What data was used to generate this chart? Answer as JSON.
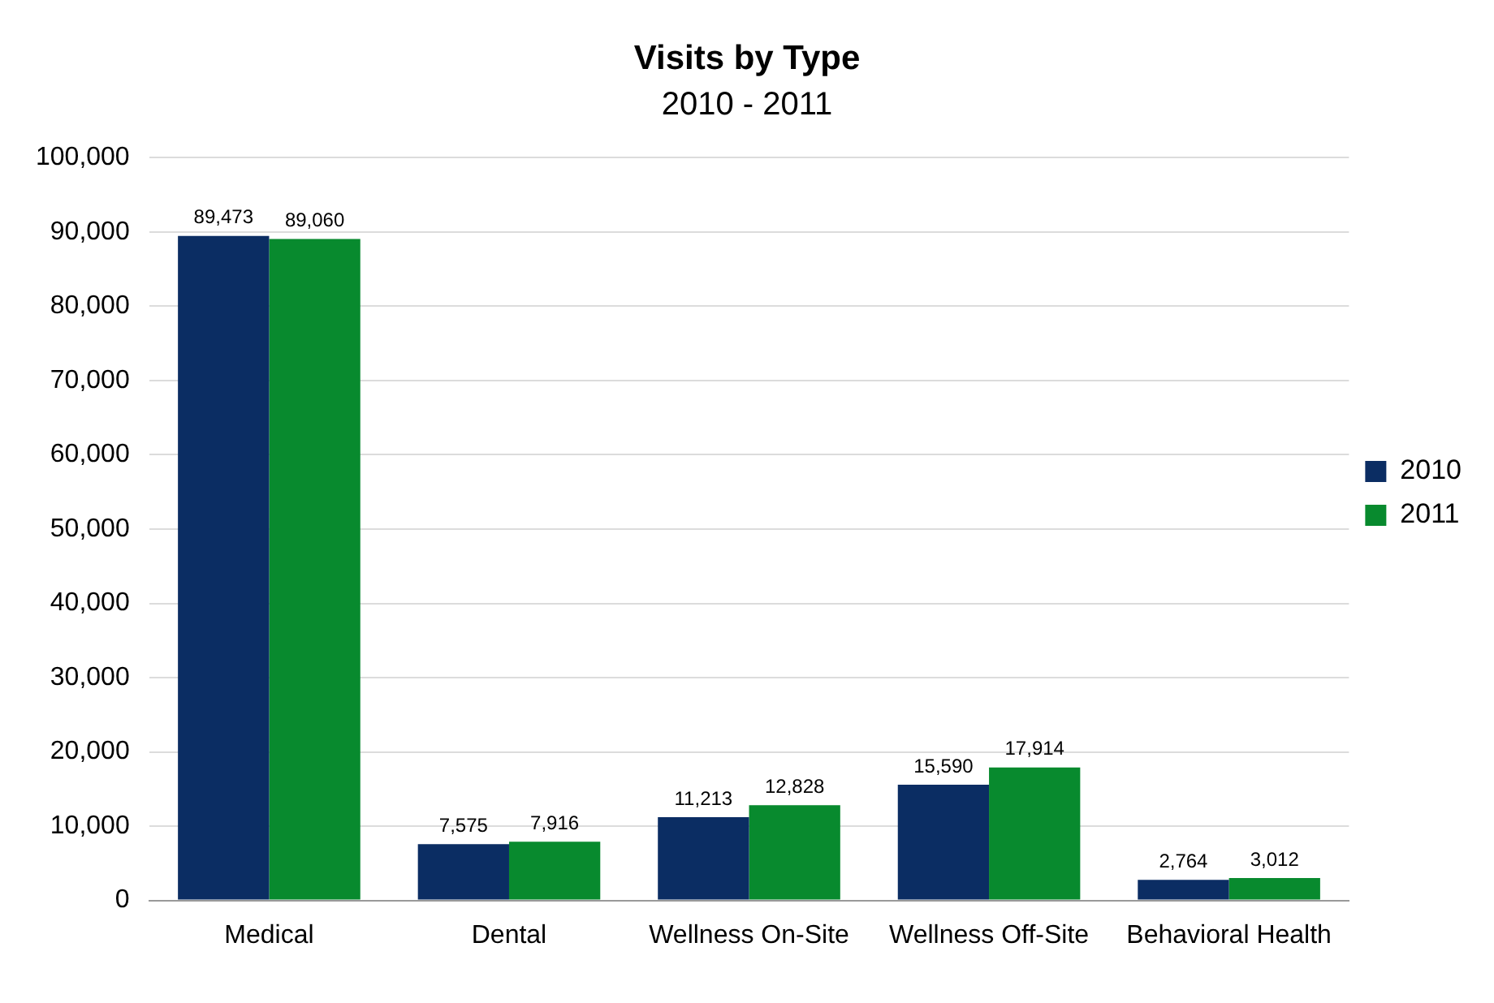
{
  "chart_data": {
    "type": "bar",
    "title": "Visits by Type",
    "subtitle": "2010 - 2011",
    "categories": [
      "Medical",
      "Dental",
      "Wellness On-Site",
      "Wellness Off-Site",
      "Behavioral Health"
    ],
    "series": [
      {
        "name": "2010",
        "color": "#0b2d63",
        "values": [
          89473,
          7575,
          11213,
          15590,
          2764
        ],
        "value_labels": [
          "89,473",
          "7,575",
          "11,213",
          "15,590",
          "2,764"
        ]
      },
      {
        "name": "2011",
        "color": "#088a2e",
        "values": [
          89060,
          7916,
          12828,
          17914,
          3012
        ],
        "value_labels": [
          "89,060",
          "7,916",
          "12,828",
          "17,914",
          "3,012"
        ]
      }
    ],
    "ylim": [
      0,
      100000
    ],
    "yticks": [
      {
        "value": 0,
        "label": "0"
      },
      {
        "value": 10000,
        "label": "10,000"
      },
      {
        "value": 20000,
        "label": "20,000"
      },
      {
        "value": 30000,
        "label": "30,000"
      },
      {
        "value": 40000,
        "label": "40,000"
      },
      {
        "value": 50000,
        "label": "50,000"
      },
      {
        "value": 60000,
        "label": "60,000"
      },
      {
        "value": 70000,
        "label": "70,000"
      },
      {
        "value": 80000,
        "label": "80,000"
      },
      {
        "value": 90000,
        "label": "90,000"
      },
      {
        "value": 100000,
        "label": "100,000"
      }
    ],
    "grid": "y",
    "legend": "right"
  }
}
